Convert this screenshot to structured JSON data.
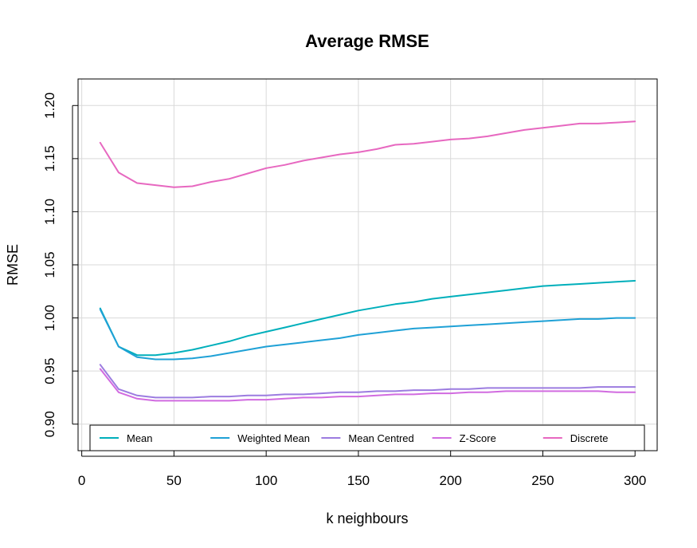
{
  "chart_data": {
    "type": "line",
    "title": "Average RMSE",
    "xlabel": "k neighbours",
    "ylabel": "RMSE",
    "xlim": [
      -2,
      312
    ],
    "ylim": [
      0.875,
      1.225
    ],
    "xticks": [
      0,
      50,
      100,
      150,
      200,
      250,
      300
    ],
    "xtick_labels": [
      "0",
      "50",
      "100",
      "150",
      "200",
      "250",
      "300"
    ],
    "yticks": [
      0.9,
      0.95,
      1.0,
      1.05,
      1.1,
      1.15,
      1.2
    ],
    "ytick_labels": [
      "0.90",
      "0.95",
      "1.00",
      "1.05",
      "1.10",
      "1.15",
      "1.20"
    ],
    "grid": true,
    "legend_position": "bottom",
    "x": [
      10,
      20,
      30,
      40,
      50,
      60,
      70,
      80,
      90,
      100,
      110,
      120,
      130,
      140,
      150,
      160,
      170,
      180,
      190,
      200,
      210,
      220,
      230,
      240,
      250,
      260,
      270,
      280,
      290,
      300
    ],
    "series": [
      {
        "name": "Mean",
        "color": "#00AFBB",
        "values": [
          1.009,
          0.973,
          0.965,
          0.965,
          0.967,
          0.97,
          0.974,
          0.978,
          0.983,
          0.987,
          0.991,
          0.995,
          0.999,
          1.003,
          1.007,
          1.01,
          1.013,
          1.015,
          1.018,
          1.02,
          1.022,
          1.024,
          1.026,
          1.028,
          1.03,
          1.031,
          1.032,
          1.033,
          1.034,
          1.035
        ]
      },
      {
        "name": "Weighted Mean",
        "color": "#1FA1D6",
        "values": [
          1.008,
          0.973,
          0.963,
          0.961,
          0.961,
          0.962,
          0.964,
          0.967,
          0.97,
          0.973,
          0.975,
          0.977,
          0.979,
          0.981,
          0.984,
          0.986,
          0.988,
          0.99,
          0.991,
          0.992,
          0.993,
          0.994,
          0.995,
          0.996,
          0.997,
          0.998,
          0.999,
          0.999,
          1.0,
          1.0
        ]
      },
      {
        "name": "Mean Centred",
        "color": "#9C7CE0",
        "values": [
          0.956,
          0.933,
          0.927,
          0.925,
          0.925,
          0.925,
          0.926,
          0.926,
          0.927,
          0.927,
          0.928,
          0.928,
          0.929,
          0.93,
          0.93,
          0.931,
          0.931,
          0.932,
          0.932,
          0.933,
          0.933,
          0.934,
          0.934,
          0.934,
          0.934,
          0.934,
          0.934,
          0.935,
          0.935,
          0.935
        ]
      },
      {
        "name": "Z-Score",
        "color": "#D16BE0",
        "values": [
          0.952,
          0.93,
          0.924,
          0.922,
          0.922,
          0.922,
          0.922,
          0.922,
          0.923,
          0.923,
          0.924,
          0.925,
          0.925,
          0.926,
          0.926,
          0.927,
          0.928,
          0.928,
          0.929,
          0.929,
          0.93,
          0.93,
          0.931,
          0.931,
          0.931,
          0.931,
          0.931,
          0.931,
          0.93,
          0.93
        ]
      },
      {
        "name": "Discrete",
        "color": "#E768C0",
        "values": [
          1.165,
          1.137,
          1.127,
          1.125,
          1.123,
          1.124,
          1.128,
          1.131,
          1.136,
          1.141,
          1.144,
          1.148,
          1.151,
          1.154,
          1.156,
          1.159,
          1.163,
          1.164,
          1.166,
          1.168,
          1.169,
          1.171,
          1.174,
          1.177,
          1.179,
          1.181,
          1.183,
          1.183,
          1.184,
          1.185
        ]
      }
    ]
  }
}
